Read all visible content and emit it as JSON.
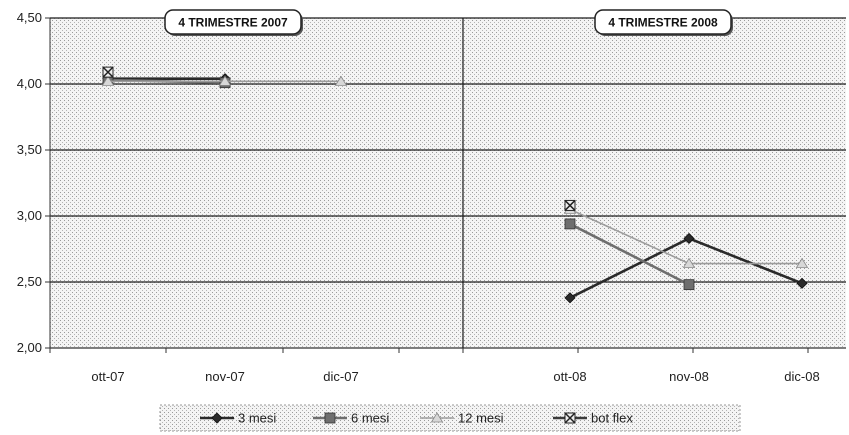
{
  "chart_data": {
    "type": "line",
    "ylim": [
      2.0,
      4.5
    ],
    "y_ticks": [
      "2,00",
      "2,50",
      "3,00",
      "3,50",
      "4,00",
      "4,50"
    ],
    "y_tick_values": [
      2.0,
      2.5,
      3.0,
      3.5,
      4.0,
      4.5
    ],
    "grid": true,
    "legend_position": "bottom",
    "panels": [
      {
        "title": "4  TRIMESTRE 2007",
        "categories": [
          "ott-07",
          "nov-07",
          "dic-07"
        ],
        "series": [
          {
            "name": "3  mesi",
            "values": [
              4.04,
              4.04,
              null
            ]
          },
          {
            "name": "6  mesi",
            "values": [
              4.03,
              4.01,
              null
            ]
          },
          {
            "name": "12 mesi",
            "values": [
              4.02,
              4.02,
              4.02
            ]
          },
          {
            "name": "bot flex",
            "values": [
              4.09,
              null,
              null
            ]
          }
        ]
      },
      {
        "title": "4  TRIMESTRE 2008",
        "categories": [
          "ott-08",
          "nov-08",
          "dic-08"
        ],
        "series": [
          {
            "name": "3  mesi",
            "values": [
              2.38,
              2.83,
              2.49
            ]
          },
          {
            "name": "6  mesi",
            "values": [
              2.94,
              2.48,
              null
            ]
          },
          {
            "name": "12 mesi",
            "values": [
              3.05,
              2.64,
              2.64
            ]
          },
          {
            "name": "bot flex",
            "values": [
              3.08,
              null,
              null
            ]
          }
        ]
      }
    ],
    "series_styles": [
      {
        "marker": "diamond",
        "color": "#2a2a2a"
      },
      {
        "marker": "square",
        "color": "#6e6e6e"
      },
      {
        "marker": "triangle",
        "color": "#a8a8a8"
      },
      {
        "marker": "xsquare",
        "color": "#3a3a3a"
      }
    ]
  }
}
